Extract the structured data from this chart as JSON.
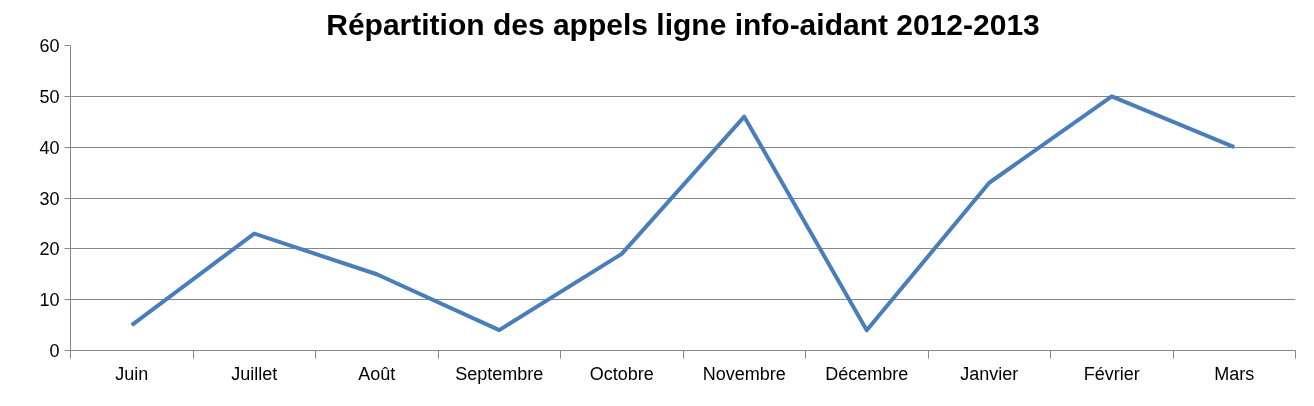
{
  "chart_data": {
    "type": "line",
    "title": "Répartition des appels ligne info-aidant 2012-2013",
    "categories": [
      "Juin",
      "Juillet",
      "Août",
      "Septembre",
      "Octobre",
      "Novembre",
      "Décembre",
      "Janvier",
      "Février",
      "Mars"
    ],
    "series": [
      {
        "color": "#4a7ebb",
        "values": [
          5,
          23,
          15,
          4,
          19,
          46,
          4,
          33,
          50,
          40
        ]
      }
    ],
    "ylim": [
      0,
      60
    ],
    "yticks": [
      0,
      10,
      20,
      30,
      40,
      50,
      60
    ],
    "grid": "y",
    "marker": "none",
    "line_style": "solid"
  }
}
